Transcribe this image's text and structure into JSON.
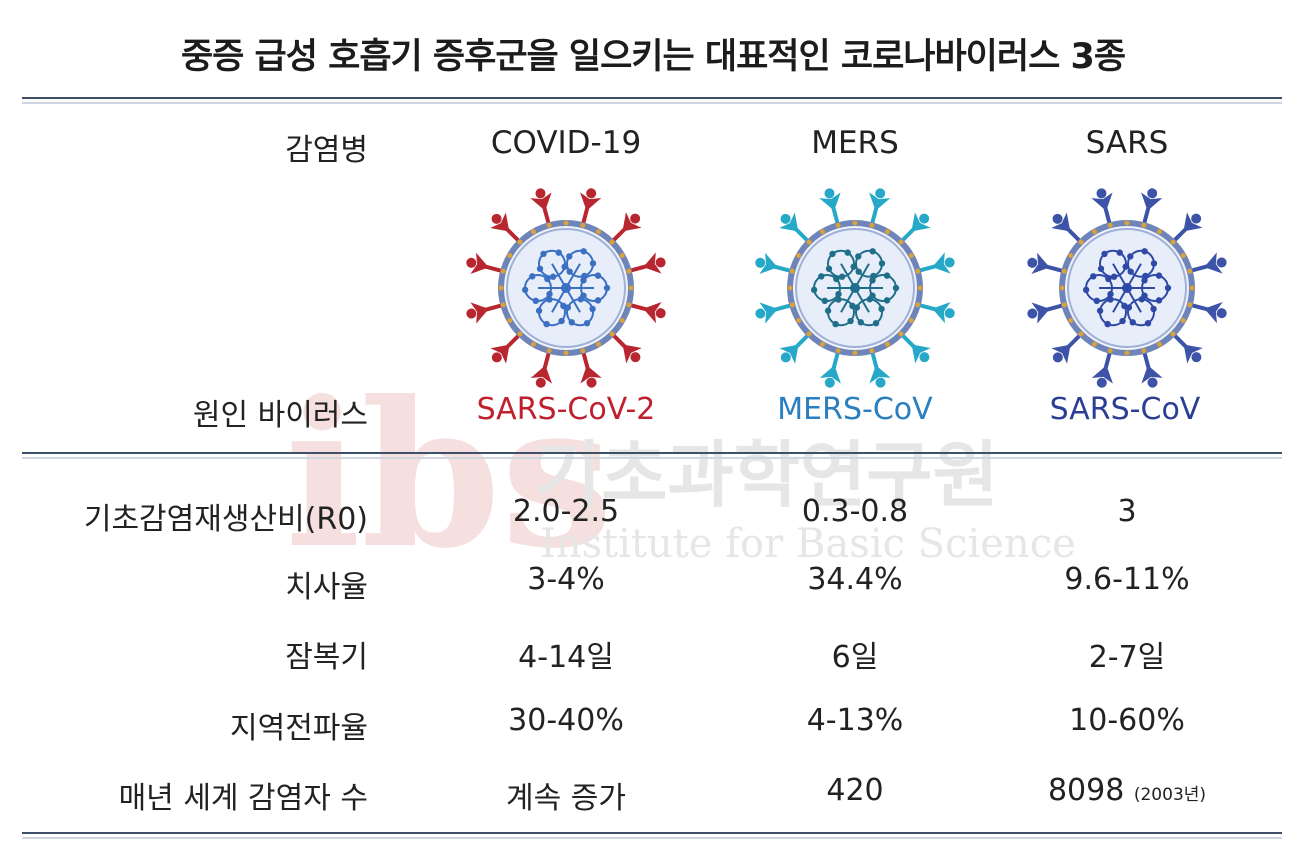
{
  "title": "중증 급성 호흡기 증후군을 일으키는 대표적인 코로나바이러스 3종",
  "watermark": {
    "logo_text": "ibs",
    "korean": "기초과학연구원",
    "english": "Institute for Basic Science"
  },
  "row_labels": {
    "disease": "감염병",
    "virus": "원인 바이러스",
    "r0": "기초감염재생산비(R0)",
    "fatality": "치사율",
    "incubation": "잠복기",
    "transmission": "지역전파율",
    "cases": "매년 세계 감염자 수"
  },
  "columns": [
    {
      "disease": "COVID-19",
      "virus": "SARS-CoV-2",
      "virus_color": "#c0202e",
      "spike_color": "#b8262f",
      "r0": "2.0-2.5",
      "fatality": "3-4%",
      "incubation": "4-14일",
      "transmission": "30-40%",
      "cases": "계속 증가",
      "cases_note": ""
    },
    {
      "disease": "MERS",
      "virus": "MERS-CoV",
      "virus_color": "#2a7fc0",
      "spike_color": "#26a8c8",
      "r0": "0.3-0.8",
      "fatality": "34.4%",
      "incubation": "6일",
      "transmission": "4-13%",
      "cases": "420",
      "cases_note": ""
    },
    {
      "disease": "SARS",
      "virus": "SARS-CoV",
      "virus_color": "#2b3e96",
      "spike_color": "#3c53a8",
      "r0": "3",
      "fatality": "9.6-11%",
      "incubation": "2-7일",
      "transmission": "10-60%",
      "cases": "8098",
      "cases_note": "(2003년)"
    }
  ]
}
